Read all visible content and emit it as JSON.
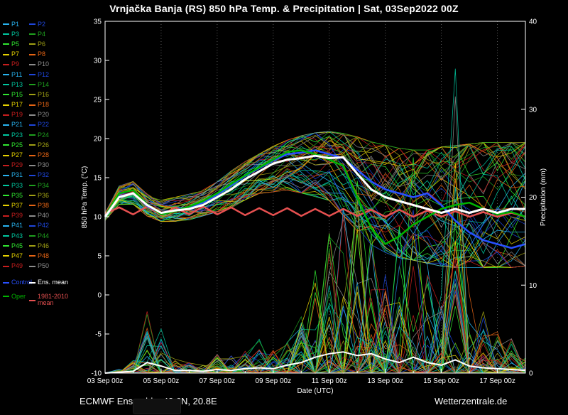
{
  "title": "Vrnjačka Banja  (RS)  850 hPa Temp. & Precipitation | Sat, 03Sep2022 00Z",
  "footer": {
    "left": "ECMWF Ensemble, 43.6N, 20.8E",
    "right": "Wetterzentrale.de"
  },
  "legend": {
    "member_prefix": "P",
    "member_count": 50,
    "palette": [
      "#28b4f0",
      "#1e46dc",
      "#00c8a0",
      "#1ea01e",
      "#30e630",
      "#a0a014",
      "#e6d200",
      "#e66414",
      "#c81e1e",
      "#8c8c8c"
    ],
    "control_label": "Control",
    "control_color": "#2850ff",
    "ens_mean_label": "Ens. mean",
    "ens_mean_color": "#ffffff",
    "oper_label": "Oper",
    "oper_color": "#00b400",
    "clim_label": "1981-2010 mean",
    "clim_color": "#e65050"
  },
  "chart_data": {
    "type": "line",
    "title": "Vrnjačka Banja (RS) 850 hPa Temp. & Precipitation | Sat, 03Sep2022 00Z",
    "xlabel": "Date (UTC)",
    "ylabel_left": "850 hPa Temp. (°C)",
    "ylabel_right": "Precipitation (mm)",
    "x_ticks": [
      "03 Sep 00z",
      "05 Sep 00z",
      "07 Sep 00z",
      "09 Sep 00z",
      "11 Sep 00z",
      "13 Sep 00z",
      "15 Sep 00z",
      "17 Sep 00z"
    ],
    "x_tick_days": [
      0,
      2,
      4,
      6,
      8,
      10,
      12,
      14
    ],
    "x_range_days": [
      0,
      15
    ],
    "y_left_range": [
      -10,
      35
    ],
    "y_left_ticks": [
      -10,
      -5,
      0,
      5,
      10,
      15,
      20,
      25,
      30,
      35
    ],
    "y_right_range": [
      0,
      40
    ],
    "y_right_ticks": [
      0,
      10,
      20,
      30,
      40
    ],
    "grid": "vertical-dotted",
    "legend_position": "left",
    "t_days": [
      0,
      0.5,
      1,
      1.5,
      2,
      2.5,
      3,
      3.5,
      4,
      4.5,
      5,
      5.5,
      6,
      6.5,
      7,
      7.5,
      8,
      8.5,
      9,
      9.5,
      10,
      10.5,
      11,
      11.5,
      12,
      12.5,
      13,
      13.5,
      14,
      14.5,
      15
    ],
    "series": [
      {
        "name": "1981-2010 mean",
        "axis": "left",
        "color": "#e65050",
        "width": 2.5,
        "values": [
          10.4,
          11.2,
          10.3,
          11.3,
          10.2,
          11.2,
          10.3,
          11.3,
          10.3,
          11.2,
          10.2,
          11.1,
          10.2,
          11.1,
          10.1,
          11,
          10.1,
          11,
          10.1,
          10.9,
          10,
          10.9,
          10,
          10.8,
          10,
          10.7,
          10,
          10.6,
          10,
          10.5,
          10
        ]
      },
      {
        "name": "Control",
        "axis": "left",
        "color": "#2850ff",
        "width": 2.5,
        "values": [
          10,
          12.6,
          13,
          11.4,
          10.4,
          10.8,
          11.2,
          11.8,
          12.8,
          14,
          15.2,
          16.2,
          17.2,
          18,
          18.2,
          18.5,
          18,
          17.5,
          16,
          14.5,
          13.5,
          13,
          12.5,
          13,
          11.5,
          9.5,
          8,
          7,
          6.5,
          6,
          6.5
        ]
      },
      {
        "name": "Oper",
        "axis": "left",
        "color": "#00b400",
        "width": 2.5,
        "values": [
          10,
          13,
          13.4,
          11.6,
          10.3,
          10.7,
          11.3,
          12,
          13,
          14.2,
          15.3,
          16.3,
          17.3,
          18.3,
          18.5,
          18,
          17.3,
          16.5,
          12.5,
          8.5,
          6.5,
          7.5,
          9,
          10,
          11,
          11.5,
          11.8,
          11,
          10.3,
          10.6,
          10
        ]
      },
      {
        "name": "Ens. mean",
        "axis": "left",
        "color": "#ffffff",
        "width": 3,
        "values": [
          10,
          12.5,
          13,
          11.5,
          10.5,
          10.8,
          11,
          11.5,
          12.5,
          13.5,
          14.8,
          15.8,
          16.8,
          17.3,
          17.5,
          17.8,
          17.5,
          17.6,
          15.5,
          13.5,
          12.5,
          12,
          11.5,
          11,
          10.5,
          11,
          10.5,
          11,
          10.5,
          11,
          11
        ]
      },
      {
        "name": "Ens. mean precipitation",
        "axis": "right",
        "color": "#ffffff",
        "width": 2,
        "values": [
          0,
          0.1,
          0.2,
          1.2,
          0.8,
          0.3,
          0.3,
          0.2,
          0.4,
          0.3,
          0.5,
          0.6,
          0.5,
          0.9,
          1.2,
          1.8,
          2.2,
          2.4,
          2,
          2.2,
          1.6,
          1.2,
          1.8,
          1.2,
          0.9,
          1.5,
          0.8,
          0.6,
          0.5,
          0.4,
          0.3
        ]
      }
    ],
    "ensemble": {
      "count": 50,
      "temp_envelope_min": [
        9.5,
        11.5,
        11.5,
        10,
        9.3,
        9.3,
        9.5,
        10,
        10.5,
        11,
        12,
        12.8,
        13,
        13.2,
        12.8,
        12.3,
        11.8,
        9.8,
        7.8,
        6,
        5,
        4.3,
        4,
        3.6,
        3.2,
        3,
        3,
        3,
        3,
        3,
        3.2
      ],
      "temp_envelope_max": [
        10.5,
        14,
        14.6,
        13,
        12.2,
        12.6,
        13,
        13.6,
        14.6,
        16,
        17.2,
        18.2,
        19.2,
        20,
        20.6,
        21,
        21.2,
        21,
        20.6,
        20,
        19.6,
        19.2,
        19,
        19,
        19.4,
        19.6,
        19.8,
        20,
        20,
        20,
        20
      ],
      "precip_envelope_max": [
        0,
        0.5,
        1.5,
        8,
        6,
        2,
        1.5,
        1,
        2.5,
        2,
        2.5,
        4,
        3,
        5,
        8,
        12,
        16,
        20,
        22,
        16,
        12,
        18,
        26,
        14,
        10,
        37,
        9,
        7,
        5,
        4,
        2
      ]
    }
  }
}
